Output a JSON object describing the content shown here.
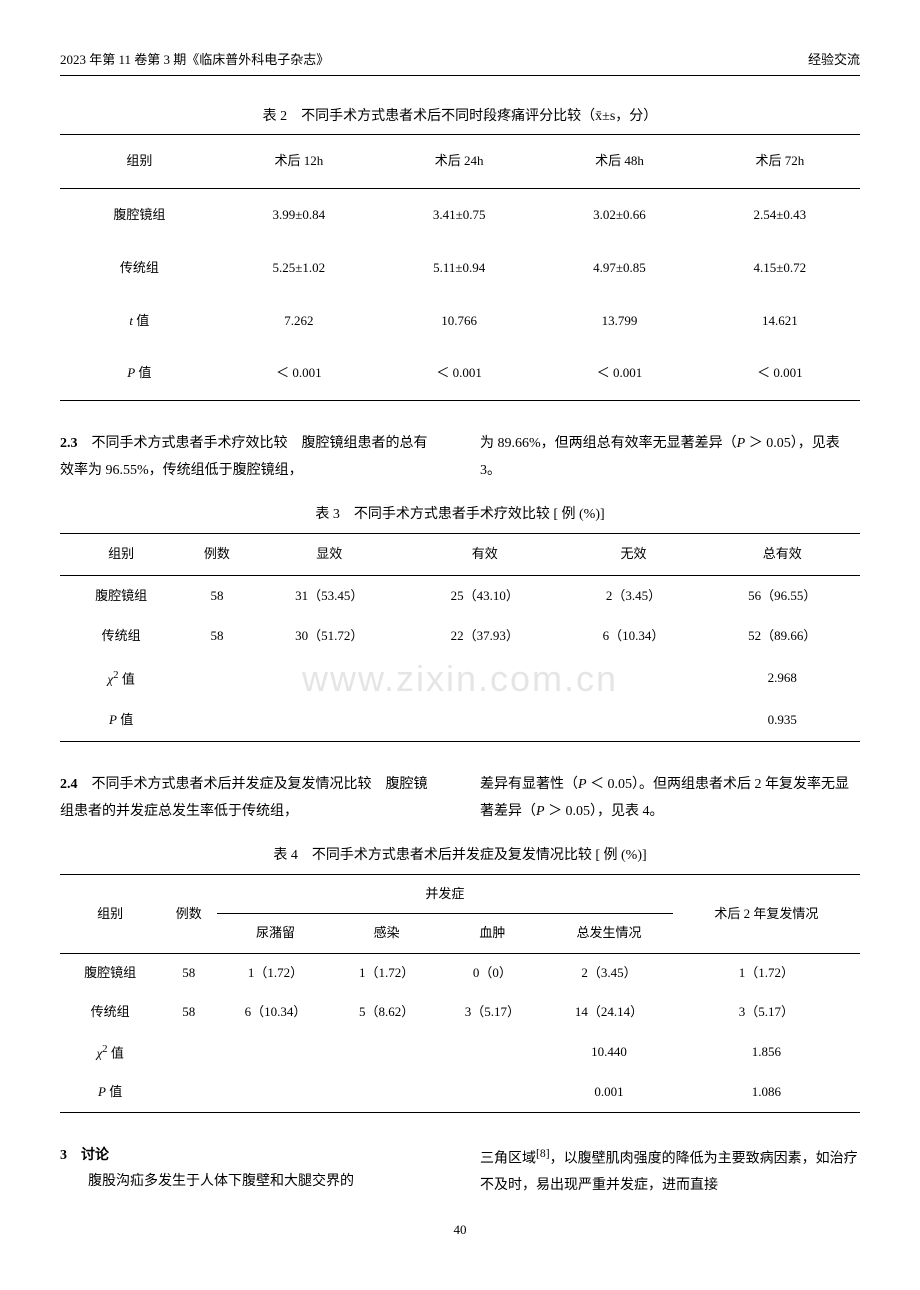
{
  "header": {
    "left": "2023 年第 11 卷第 3 期《临床普外科电子杂志》",
    "right": "经验交流"
  },
  "watermark": "www.zixin.com.cn",
  "table2": {
    "caption": "表 2　不同手术方式患者术后不同时段疼痛评分比较（x̄±s，分）",
    "headers": [
      "组别",
      "术后 12h",
      "术后 24h",
      "术后 48h",
      "术后 72h"
    ],
    "rows": [
      [
        "腹腔镜组",
        "3.99±0.84",
        "3.41±0.75",
        "3.02±0.66",
        "2.54±0.43"
      ],
      [
        "传统组",
        "5.25±1.02",
        "5.11±0.94",
        "4.97±0.85",
        "4.15±0.72"
      ],
      [
        "t 值",
        "7.262",
        "10.766",
        "13.799",
        "14.621"
      ],
      [
        "P 值",
        "＜ 0.001",
        "＜ 0.001",
        "＜ 0.001",
        "＜ 0.001"
      ]
    ],
    "row2_label_html": "<span class='italic'>t</span> 值",
    "row3_label_html": "<span class='italic'>P</span> 值"
  },
  "section23": {
    "left": "<span class='bold'>2.3</span>　不同手术方式患者手术疗效比较　腹腔镜组患者的总有效率为 96.55%，传统组低于腹腔镜组，",
    "right": "为 89.66%，但两组总有效率无显著差异（<span class='italic'>P</span> ＞ 0.05），见表 3。"
  },
  "table3": {
    "caption": "表 3　不同手术方式患者手术疗效比较 [ 例 (%)]",
    "headers": [
      "组别",
      "例数",
      "显效",
      "有效",
      "无效",
      "总有效"
    ],
    "rows": [
      [
        "腹腔镜组",
        "58",
        "31（53.45）",
        "25（43.10）",
        "2（3.45）",
        "56（96.55）"
      ],
      [
        "传统组",
        "58",
        "30（51.72）",
        "22（37.93）",
        "6（10.34）",
        "52（89.66）"
      ],
      [
        "χ² 值",
        "",
        "",
        "",
        "",
        "2.968"
      ],
      [
        "P 值",
        "",
        "",
        "",
        "",
        "0.935"
      ]
    ],
    "row2_label_html": "<span class='italic'>χ</span><sup>2</sup> 值",
    "row3_label_html": "<span class='italic'>P</span> 值"
  },
  "section24": {
    "left": "<span class='bold'>2.4</span>　不同手术方式患者术后并发症及复发情况比较　腹腔镜组患者的并发症总发生率低于传统组，",
    "right": "差异有显著性（<span class='italic'>P</span> ＜ 0.05）。但两组患者术后 2 年复发率无显著差异（<span class='italic'>P</span> ＞ 0.05），见表 4。"
  },
  "table4": {
    "caption": "表 4　不同手术方式患者术后并发症及复发情况比较 [ 例 (%)]",
    "header_row1": [
      "组别",
      "例数",
      "并发症",
      "术后 2 年复发情况"
    ],
    "header_row2": [
      "尿潴留",
      "感染",
      "血肿",
      "总发生情况"
    ],
    "rows": [
      [
        "腹腔镜组",
        "58",
        "1（1.72）",
        "1（1.72）",
        "0（0）",
        "2（3.45）",
        "1（1.72）"
      ],
      [
        "传统组",
        "58",
        "6（10.34）",
        "5（8.62）",
        "3（5.17）",
        "14（24.14）",
        "3（5.17）"
      ],
      [
        "χ² 值",
        "",
        "",
        "",
        "",
        "10.440",
        "1.856"
      ],
      [
        "P 值",
        "",
        "",
        "",
        "",
        "0.001",
        "1.086"
      ]
    ],
    "row2_label_html": "<span class='italic'>χ</span><sup>2</sup> 值",
    "row3_label_html": "<span class='italic'>P</span> 值"
  },
  "section3": {
    "left": "<span class='bold'>3　讨论</span><br>　　腹股沟疝多发生于人体下腹壁和大腿交界的",
    "right": "三角区域<sup>[8]</sup>，以腹壁肌肉强度的降低为主要致病因素，如治疗不及时，易出现严重并发症，进而直接"
  },
  "pageNumber": "40"
}
